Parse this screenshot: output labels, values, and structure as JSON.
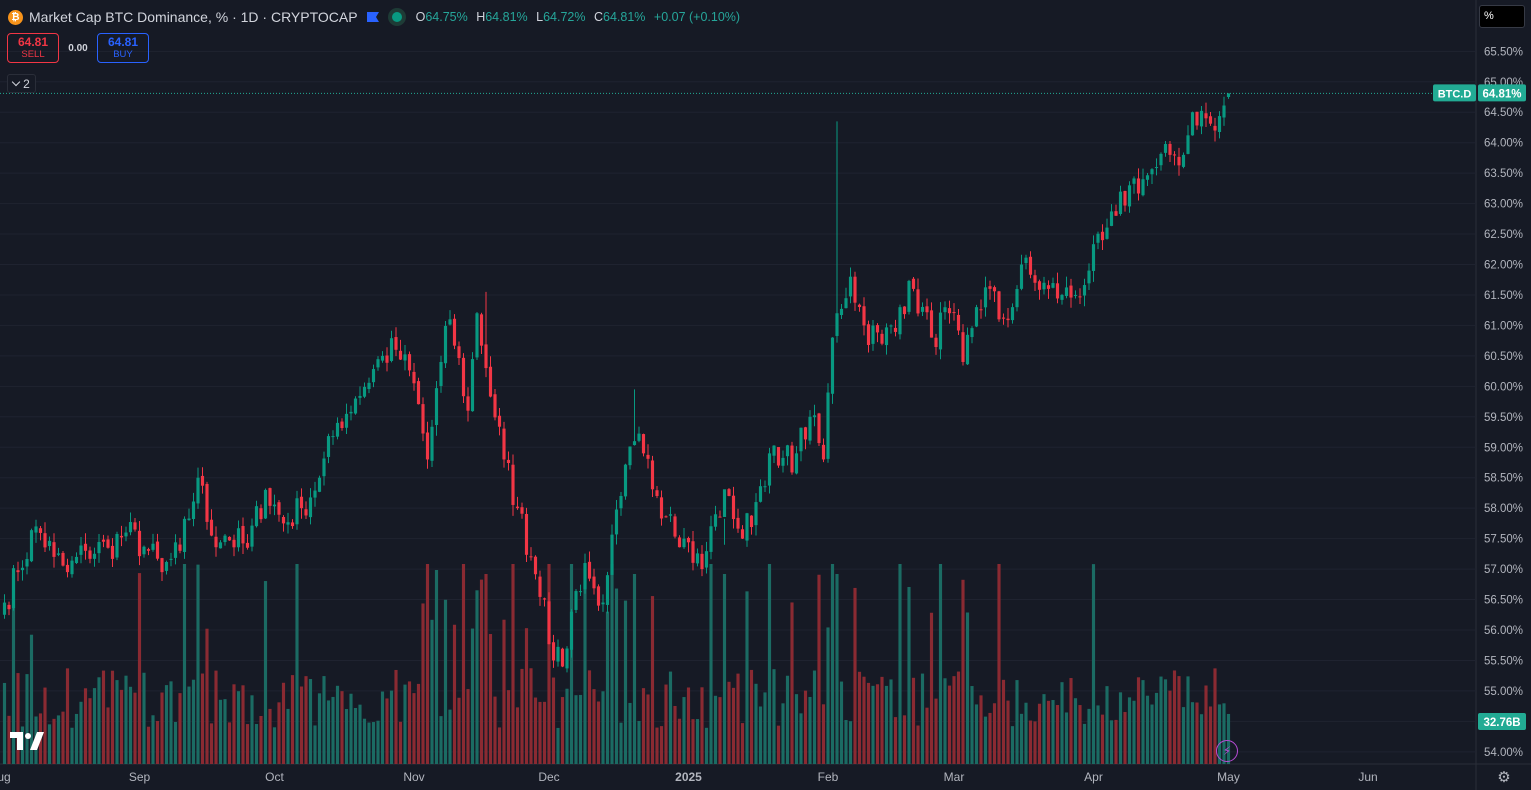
{
  "header": {
    "coin_symbol": "₿",
    "title": "Market Cap BTC Dominance, % · 1D · CRYPTOCAP",
    "ohlc": {
      "o_label": "O",
      "o_value": "64.75%",
      "h_label": "H",
      "h_value": "64.81%",
      "l_label": "L",
      "l_value": "64.72%",
      "c_label": "C",
      "c_value": "64.81%",
      "change": "+0.07 (+0.10%)"
    }
  },
  "trade": {
    "sell_price": "64.81",
    "sell_label": "SELL",
    "spread": "0.00",
    "buy_price": "64.81",
    "buy_label": "BUY"
  },
  "collapse_label": "2",
  "unit_label": "%",
  "colors": {
    "background": "#161a25",
    "up": "#089981",
    "down": "#f23645",
    "up_volume": "#1b6b63",
    "down_volume": "#8a2a32",
    "grid": "#1f2330",
    "axis_text": "#b2b5be",
    "price_label": "#22ab94"
  },
  "icons": {
    "coin": "bitcoin-icon",
    "flag": "flag-icon",
    "live": "live-dot-icon",
    "chevron": "chevron-down-icon",
    "logo": "tradingview-logo-icon",
    "bolt": "lightning-icon",
    "settings": "gear-icon"
  },
  "chart_data": {
    "type": "candlestick",
    "title": "Market Cap BTC Dominance, % · 1D · CRYPTOCAP",
    "ylabel": "%",
    "ylim": [
      53.8,
      65.85
    ],
    "y_ticks": [
      "65.50%",
      "65.00%",
      "64.50%",
      "64.00%",
      "63.50%",
      "63.00%",
      "62.50%",
      "62.00%",
      "61.50%",
      "61.00%",
      "60.50%",
      "60.00%",
      "59.50%",
      "59.00%",
      "58.50%",
      "58.00%",
      "57.50%",
      "57.00%",
      "56.50%",
      "56.00%",
      "55.50%",
      "55.00%",
      "54.50%",
      "54.00%"
    ],
    "x_ticks": [
      "Aug",
      "Sep",
      "Oct",
      "Nov",
      "Dec",
      "2025",
      "Feb",
      "Mar",
      "Apr",
      "May",
      "Jun"
    ],
    "x_tick_dates": [
      "2024-08-01",
      "2024-09-01",
      "2024-10-01",
      "2024-11-01",
      "2024-12-01",
      "2025-01-01",
      "2025-02-01",
      "2025-03-01",
      "2025-04-01",
      "2025-05-01",
      "2025-06-01"
    ],
    "x_range": [
      "2024-08-01",
      "2025-06-25"
    ],
    "first_date": "2024-08-02",
    "close_anchors": [
      [
        "2024-08-02",
        56.45
      ],
      [
        "2024-08-05",
        56.95
      ],
      [
        "2024-08-09",
        57.7
      ],
      [
        "2024-08-13",
        57.2
      ],
      [
        "2024-08-16",
        56.95
      ],
      [
        "2024-08-20",
        57.3
      ],
      [
        "2024-08-25",
        57.35
      ],
      [
        "2024-08-29",
        57.6
      ],
      [
        "2024-09-03",
        57.3
      ],
      [
        "2024-09-06",
        56.95
      ],
      [
        "2024-09-10",
        57.3
      ],
      [
        "2024-09-14",
        58.5
      ],
      [
        "2024-09-17",
        57.55
      ],
      [
        "2024-09-20",
        57.55
      ],
      [
        "2024-09-25",
        57.35
      ],
      [
        "2024-09-29",
        58.3
      ],
      [
        "2024-10-03",
        57.75
      ],
      [
        "2024-10-07",
        58.0
      ],
      [
        "2024-10-11",
        58.5
      ],
      [
        "2024-10-15",
        59.4
      ],
      [
        "2024-10-19",
        59.8
      ],
      [
        "2024-10-25",
        60.5
      ],
      [
        "2024-10-28",
        60.6
      ],
      [
        "2024-11-01",
        60.05
      ],
      [
        "2024-11-04",
        58.8
      ],
      [
        "2024-11-07",
        60.4
      ],
      [
        "2024-11-09",
        61.1
      ],
      [
        "2024-11-13",
        59.6
      ],
      [
        "2024-11-15",
        61.2
      ],
      [
        "2024-11-17",
        60.3
      ],
      [
        "2024-11-21",
        58.8
      ],
      [
        "2024-11-24",
        58.0
      ],
      [
        "2024-11-27",
        57.2
      ],
      [
        "2024-11-30",
        56.5
      ],
      [
        "2024-12-02",
        55.5
      ],
      [
        "2024-12-04",
        55.4
      ],
      [
        "2024-12-06",
        56.3
      ],
      [
        "2024-12-09",
        57.1
      ],
      [
        "2024-12-12",
        56.4
      ],
      [
        "2024-12-14",
        56.9
      ],
      [
        "2024-12-17",
        58.2
      ],
      [
        "2024-12-20",
        59.1
      ],
      [
        "2024-12-22",
        58.9
      ],
      [
        "2024-12-25",
        58.2
      ],
      [
        "2024-12-28",
        57.9
      ],
      [
        "2024-12-31",
        57.5
      ],
      [
        "2025-01-04",
        57.0
      ],
      [
        "2025-01-07",
        57.9
      ],
      [
        "2025-01-10",
        58.2
      ],
      [
        "2025-01-13",
        57.5
      ],
      [
        "2025-01-16",
        58.1
      ],
      [
        "2025-01-19",
        58.9
      ],
      [
        "2025-01-21",
        58.7
      ],
      [
        "2025-01-25",
        58.9
      ],
      [
        "2025-01-28",
        59.5
      ],
      [
        "2025-01-31",
        58.8
      ],
      [
        "2025-02-02",
        60.8
      ],
      [
        "2025-02-03",
        61.2
      ],
      [
        "2025-02-06",
        61.8
      ],
      [
        "2025-02-09",
        61.0
      ],
      [
        "2025-02-13",
        60.7
      ],
      [
        "2025-02-17",
        61.3
      ],
      [
        "2025-02-20",
        61.6
      ],
      [
        "2025-02-24",
        60.8
      ],
      [
        "2025-02-28",
        61.2
      ],
      [
        "2025-03-03",
        60.4
      ],
      [
        "2025-03-06",
        61.3
      ],
      [
        "2025-03-09",
        61.6
      ],
      [
        "2025-03-11",
        61.1
      ],
      [
        "2025-03-14",
        61.3
      ],
      [
        "2025-03-16",
        62.0
      ],
      [
        "2025-03-19",
        61.7
      ],
      [
        "2025-03-22",
        61.6
      ],
      [
        "2025-03-25",
        61.5
      ],
      [
        "2025-03-28",
        61.5
      ],
      [
        "2025-03-31",
        61.9
      ],
      [
        "2025-04-03",
        62.4
      ],
      [
        "2025-04-06",
        62.8
      ],
      [
        "2025-04-09",
        63.3
      ],
      [
        "2025-04-12",
        63.4
      ],
      [
        "2025-04-15",
        63.6
      ],
      [
        "2025-04-18",
        63.8
      ],
      [
        "2025-04-21",
        63.8
      ],
      [
        "2025-04-23",
        64.5
      ],
      [
        "2025-04-26",
        64.4
      ],
      [
        "2025-04-28",
        64.2
      ],
      [
        "2025-05-01",
        64.81
      ]
    ],
    "spike_highs": [
      [
        "2025-02-03",
        64.35
      ],
      [
        "2024-11-17",
        61.55
      ],
      [
        "2024-12-20",
        59.95
      ],
      [
        "2025-01-09",
        57.4
      ]
    ],
    "last_ohlc": {
      "open": 64.75,
      "high": 64.81,
      "low": 64.72,
      "close": 64.81
    },
    "last_price_label": "64.81%",
    "symbol_label": "BTC.D",
    "volume": {
      "last_label": "32.76B",
      "ylim_top_b": 100
    }
  }
}
